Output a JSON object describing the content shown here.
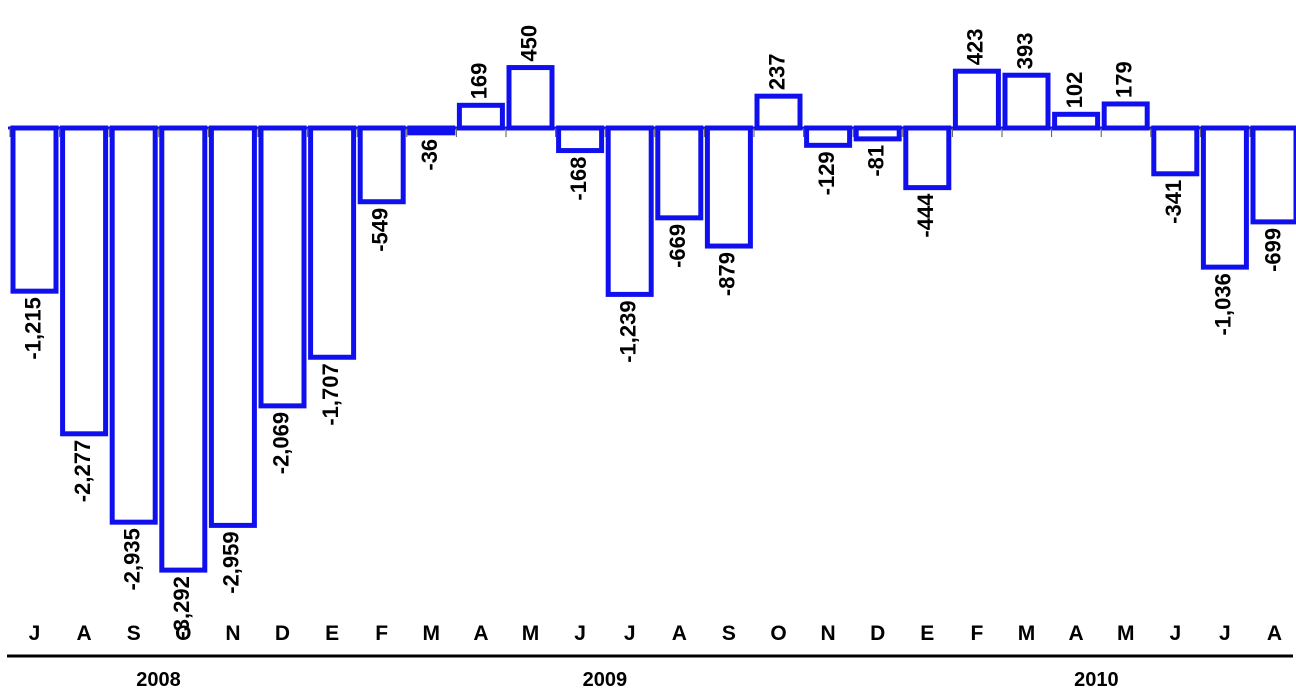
{
  "chart_data": {
    "type": "bar",
    "categories": [
      "J",
      "A",
      "S",
      "O",
      "N",
      "D",
      "E",
      "F",
      "M",
      "A",
      "M",
      "J",
      "J",
      "A",
      "S",
      "O",
      "N",
      "D",
      "E",
      "F",
      "M",
      "A",
      "M",
      "J",
      "J",
      "A"
    ],
    "values": [
      -1215,
      -2277,
      -2935,
      -3292,
      -2959,
      -2069,
      -1707,
      -549,
      -36,
      169,
      450,
      -168,
      -1239,
      -669,
      -879,
      237,
      -129,
      -81,
      -444,
      423,
      393,
      102,
      179,
      -341,
      -1036,
      -699
    ],
    "value_labels": [
      "-1,215",
      "-2,277",
      "-2,935",
      "-3,292",
      "-2,959",
      "-2,069",
      "-1,707",
      "-549",
      "-36",
      "169",
      "450",
      "-168",
      "-1,239",
      "-669",
      "-879",
      "237",
      "-129",
      "-81",
      "-444",
      "423",
      "393",
      "102",
      "179",
      "-341",
      "-1,036",
      "-699"
    ],
    "years": [
      {
        "label": "2008",
        "start": 0,
        "end": 5
      },
      {
        "label": "2009",
        "start": 6,
        "end": 17
      },
      {
        "label": "2010",
        "start": 18,
        "end": 25
      }
    ],
    "bar_color": "#1010ee",
    "grid": false
  }
}
